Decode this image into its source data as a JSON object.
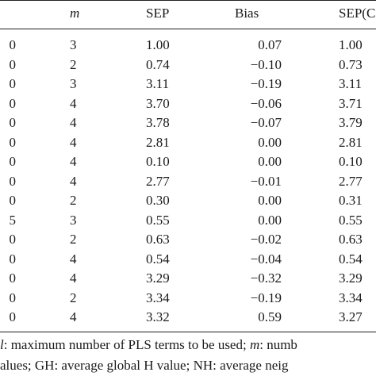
{
  "table": {
    "headers": {
      "m": "m",
      "sep": "SEP",
      "bias": "Bias",
      "sepc": "SEP(C"
    },
    "rows": [
      {
        "first": "0",
        "m": "3",
        "sep": "1.00",
        "bias": "0.07",
        "sepc": "1.00"
      },
      {
        "first": "0",
        "m": "2",
        "sep": "0.74",
        "bias": "−0.10",
        "sepc": "0.73"
      },
      {
        "first": "0",
        "m": "3",
        "sep": "3.11",
        "bias": "−0.19",
        "sepc": "3.11"
      },
      {
        "first": "0",
        "m": "4",
        "sep": "3.70",
        "bias": "−0.06",
        "sepc": "3.71"
      },
      {
        "first": "0",
        "m": "4",
        "sep": "3.78",
        "bias": "−0.07",
        "sepc": "3.79"
      },
      {
        "first": "0",
        "m": "4",
        "sep": "2.81",
        "bias": "0.00",
        "sepc": "2.81"
      },
      {
        "first": "0",
        "m": "4",
        "sep": "0.10",
        "bias": "0.00",
        "sepc": "0.10"
      },
      {
        "first": "0",
        "m": "4",
        "sep": "2.77",
        "bias": "−0.01",
        "sepc": "2.77"
      },
      {
        "first": "0",
        "m": "2",
        "sep": "0.30",
        "bias": "0.00",
        "sepc": "0.31"
      },
      {
        "first": "5",
        "m": "3",
        "sep": "0.55",
        "bias": "0.00",
        "sepc": "0.55"
      },
      {
        "first": "0",
        "m": "2",
        "sep": "0.63",
        "bias": "−0.02",
        "sepc": "0.63"
      },
      {
        "first": "0",
        "m": "4",
        "sep": "0.54",
        "bias": "−0.04",
        "sepc": "0.54"
      },
      {
        "first": "0",
        "m": "4",
        "sep": "3.29",
        "bias": "−0.32",
        "sepc": "3.29"
      },
      {
        "first": "0",
        "m": "2",
        "sep": "3.34",
        "bias": "−0.19",
        "sepc": "3.34"
      },
      {
        "first": "0",
        "m": "4",
        "sep": "3.32",
        "bias": "0.59",
        "sepc": "3.27"
      }
    ]
  },
  "footnote": {
    "line1_italic": "l",
    "line1_text": ": maximum number of PLS terms to be used; ",
    "line1_m_italic": "m",
    "line1_tail": ": numb",
    "line2": "alues; GH: average global H value; NH: average neig"
  }
}
